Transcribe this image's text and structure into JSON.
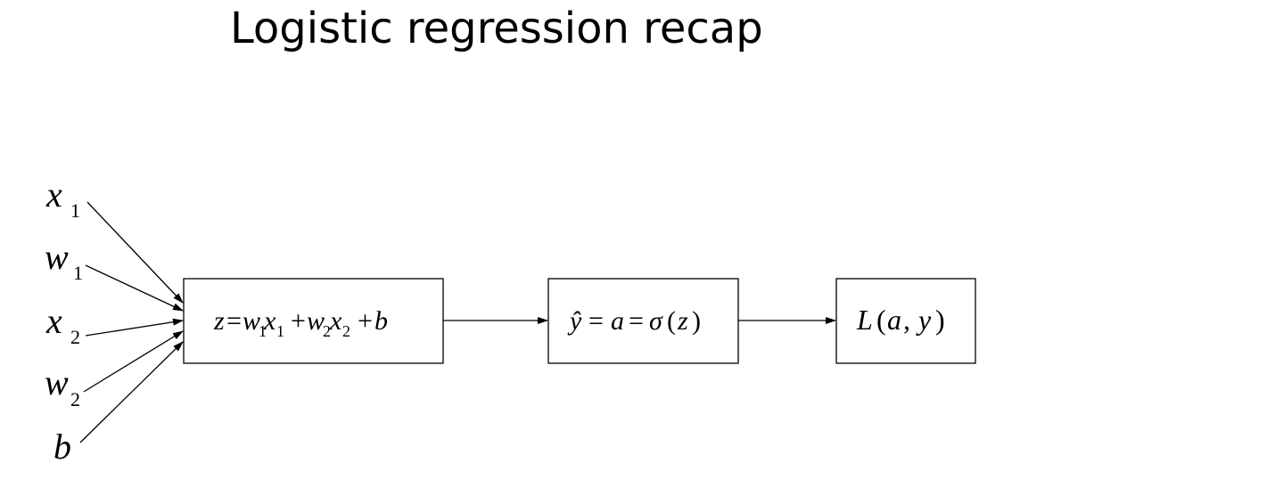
{
  "slide": {
    "title": "Logistic regression recap"
  },
  "diagram": {
    "inputs": [
      {
        "id": "x1",
        "symbol": "x",
        "subscript": "1"
      },
      {
        "id": "w1",
        "symbol": "w",
        "subscript": "1"
      },
      {
        "id": "x2",
        "symbol": "x",
        "subscript": "2"
      },
      {
        "id": "w2",
        "symbol": "w",
        "subscript": "2"
      },
      {
        "id": "b",
        "symbol": "b",
        "subscript": ""
      }
    ],
    "nodes": {
      "linear": {
        "z": "z",
        "eq": "=",
        "w1": "w",
        "w1_sub": "1",
        "x1": "x",
        "x1_sub": "1",
        "plus1": "+",
        "w2": "w",
        "w2_sub": "2",
        "x2": "x",
        "x2_sub": "2",
        "plus2": "+",
        "b": "b"
      },
      "activation": {
        "yhat": "ŷ",
        "eq1": "=",
        "a": "a",
        "eq2": "=",
        "sigma": "σ",
        "open": "(",
        "z": "z",
        "close": ")"
      },
      "loss": {
        "L": "L",
        "open": "(",
        "a": "a",
        "comma": ",",
        "y": "y",
        "close": ")"
      }
    }
  }
}
